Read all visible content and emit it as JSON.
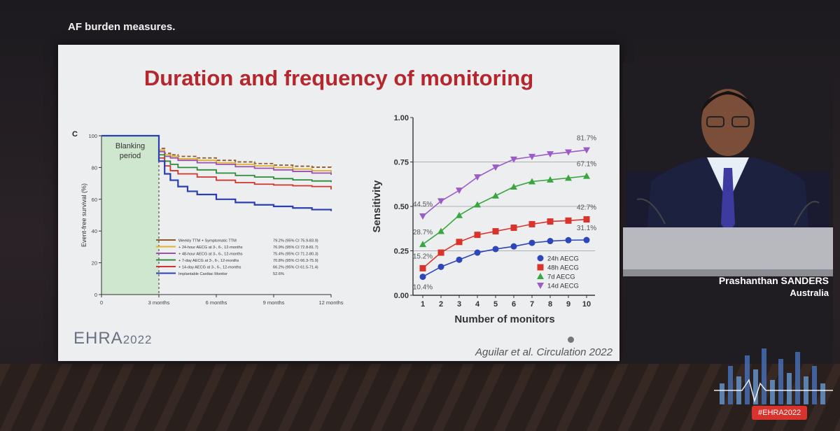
{
  "header": {
    "text": "AF burden measures."
  },
  "slide": {
    "title": "Duration and frequency of monitoring",
    "panel_label": "C",
    "logo_main": "EHRA",
    "logo_year": "2022",
    "citation": "Aguilar et al. Circulation 2022"
  },
  "speaker": {
    "name": "Prashanthan SANDERS",
    "country": "Australia"
  },
  "event": {
    "hashtag": "#EHRA2022"
  },
  "colors": {
    "title": "#b5262d",
    "ttm": "#8a5a2b",
    "h24": "#e0b030",
    "h48": "#9b4fb0",
    "d7": "#2f8a3a",
    "d14": "#d0342c",
    "icm": "#2b3fb0",
    "s24": "#2e46b8",
    "s48": "#d9342c",
    "s7d": "#3aa63f",
    "s14d": "#9c5cc8"
  },
  "chart_data": [
    {
      "type": "line",
      "panel": "C",
      "ylabel": "Event-free survival (%)",
      "xlabel": "",
      "x_ticks": [
        "0",
        "3 months",
        "6 months",
        "9 months",
        "12 months"
      ],
      "x_tick_values": [
        0,
        3,
        6,
        9,
        12
      ],
      "y_ticks": [
        "0",
        "20",
        "40",
        "60",
        "80",
        "100"
      ],
      "xlim": [
        0,
        12
      ],
      "ylim": [
        0,
        100
      ],
      "shaded_region": {
        "label_line1": "Blanking",
        "label_line2": "period",
        "x_range": [
          0,
          3
        ]
      },
      "series": [
        {
          "name": "Weekly TTM + Symptomatic TTM",
          "stat": "79.2% (95% CI 75.9-83.9)",
          "color_key": "ttm",
          "dash": true,
          "x": [
            0,
            2.6,
            2.75,
            3,
            3.3,
            3.6,
            4,
            5,
            6,
            7,
            8,
            9,
            10,
            11,
            12
          ],
          "y": [
            100,
            100,
            100,
            92,
            89,
            88,
            87,
            86,
            84.5,
            83.5,
            82.5,
            81.5,
            80.8,
            80.2,
            79.2
          ]
        },
        {
          "name": "+ 24-hour AECG at 3-, 6-, 12-months",
          "stat": "76.9% (95% CI 72.8-81.7)",
          "color_key": "h24",
          "dash": false,
          "x": [
            0,
            2.6,
            2.75,
            3,
            3.3,
            3.6,
            4,
            5,
            6,
            7,
            8,
            9,
            10,
            11,
            12
          ],
          "y": [
            100,
            100,
            100,
            91,
            88,
            87,
            85.5,
            84.5,
            83,
            82,
            81,
            80,
            79,
            78,
            76.9
          ]
        },
        {
          "name": "+ 48-hour AECG at 3-, 6-, 12-months",
          "stat": "75.4% (95% CI 71.2-80.3)",
          "color_key": "h48",
          "dash": false,
          "x": [
            0,
            2.6,
            2.75,
            3,
            3.3,
            3.6,
            4,
            5,
            6,
            7,
            8,
            9,
            10,
            11,
            12
          ],
          "y": [
            100,
            100,
            100,
            90,
            87,
            86,
            84.5,
            83,
            82,
            80.5,
            79.5,
            78.5,
            77.5,
            76.5,
            75.4
          ]
        },
        {
          "name": "+ 7-day AECG at 3-, 6-, 12-months",
          "stat": "70.8% (95% CI 66.3-75.9)",
          "color_key": "d7",
          "dash": false,
          "x": [
            0,
            2.6,
            2.75,
            3,
            3.3,
            3.6,
            4,
            5,
            6,
            7,
            8,
            9,
            10,
            11,
            12
          ],
          "y": [
            100,
            100,
            100,
            88,
            84,
            82,
            80,
            78.5,
            76.5,
            75,
            74,
            73,
            72.2,
            71.5,
            70.8
          ]
        },
        {
          "name": "+ 14-day AECG at 3-, 6-, 12-months",
          "stat": "66.2% (95% CI 61.5-71.4)",
          "color_key": "d14",
          "dash": false,
          "x": [
            0,
            2.6,
            2.75,
            3,
            3.3,
            3.6,
            4,
            5,
            6,
            7,
            8,
            9,
            10,
            11,
            12
          ],
          "y": [
            100,
            100,
            100,
            86,
            81,
            78,
            76,
            74,
            72,
            70.5,
            69.5,
            69,
            68.5,
            68,
            66.2
          ]
        },
        {
          "name": "Implantable Cardiac Monitor",
          "stat": "52.6%",
          "color_key": "icm",
          "dash": false,
          "x": [
            0,
            2.6,
            2.75,
            3,
            3.3,
            3.6,
            4,
            4.5,
            5,
            6,
            7,
            8,
            9,
            10,
            11,
            12
          ],
          "y": [
            100,
            100,
            100,
            84,
            76,
            72,
            68,
            65,
            63,
            60,
            58,
            56.5,
            55.5,
            54.5,
            53.5,
            52.6
          ]
        }
      ]
    },
    {
      "type": "line",
      "xlabel": "Number of monitors",
      "ylabel": "Sensitivity",
      "x_ticks": [
        "1",
        "2",
        "3",
        "4",
        "5",
        "6",
        "7",
        "8",
        "9",
        "10"
      ],
      "y_ticks": [
        "0.00",
        "0.25",
        "0.50",
        "0.75",
        "1.00"
      ],
      "xlim": [
        1,
        10
      ],
      "ylim": [
        0,
        1
      ],
      "gridlines_y": [
        0.25,
        0.5,
        0.75
      ],
      "legend_position": "bottom-right",
      "annotations": [
        "81.7%",
        "67.1%",
        "42.7%",
        "31.1%",
        "44.5%",
        "28.7%",
        "15.2%",
        "10.4%"
      ],
      "series": [
        {
          "name": "24h AECG",
          "marker": "circle",
          "color_key": "s24",
          "x": [
            1,
            2,
            3,
            4,
            5,
            6,
            7,
            8,
            9,
            10
          ],
          "y": [
            0.104,
            0.16,
            0.2,
            0.24,
            0.26,
            0.275,
            0.295,
            0.305,
            0.31,
            0.311
          ]
        },
        {
          "name": "48h AECG",
          "marker": "square",
          "color_key": "s48",
          "x": [
            1,
            2,
            3,
            4,
            5,
            6,
            7,
            8,
            9,
            10
          ],
          "y": [
            0.152,
            0.24,
            0.3,
            0.34,
            0.36,
            0.38,
            0.4,
            0.415,
            0.42,
            0.427
          ]
        },
        {
          "name": "7d AECG",
          "marker": "triangle-up",
          "color_key": "s7d",
          "x": [
            1,
            2,
            3,
            4,
            5,
            6,
            7,
            8,
            9,
            10
          ],
          "y": [
            0.287,
            0.36,
            0.45,
            0.51,
            0.56,
            0.61,
            0.64,
            0.65,
            0.66,
            0.671
          ]
        },
        {
          "name": "14d AECG",
          "marker": "triangle-down",
          "color_key": "s14d",
          "x": [
            1,
            2,
            3,
            4,
            5,
            6,
            7,
            8,
            9,
            10
          ],
          "y": [
            0.445,
            0.53,
            0.59,
            0.665,
            0.72,
            0.765,
            0.78,
            0.795,
            0.805,
            0.817
          ]
        }
      ]
    }
  ]
}
